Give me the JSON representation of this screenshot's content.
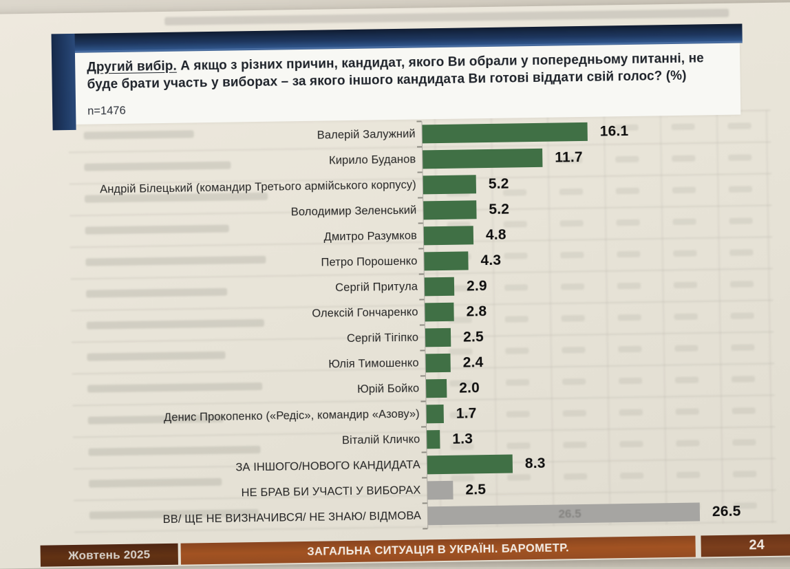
{
  "slide": {
    "title_lead": "Другий вибір.",
    "title_rest": " А якщо з різних причин, кандидат, якого Ви обрали у попередньому питанні, не буде брати участь у виборах – за якого іншого кандидата Ви готові віддати свій голос? (%)",
    "sample_size": "n=1476"
  },
  "chart_data": {
    "type": "bar",
    "orientation": "horizontal",
    "title": "Другий вибір. А якщо з різних причин, кандидат, якого Ви обрали у попередньому питанні, не буде брати участь у виборах – за якого іншого кандидата Ви готові віддати свій голос? (%)",
    "unit": "%",
    "sample": "n=1476",
    "grid": false,
    "xlim": [
      0,
      30
    ],
    "categories": [
      "Валерій Залужний",
      "Кирило Буданов",
      "Андрій Білецький (командир Третього армійського корпусу)",
      "Володимир Зеленський",
      "Дмитро Разумков",
      "Петро Порошенко",
      "Сергій Притула",
      "Олексій Гончаренко",
      "Сергій Тігіпко",
      "Юлія Тимошенко",
      "Юрій Бойко",
      "Денис Прокопенко («Редіс», командир «Азову»)",
      "Віталій Кличко",
      "ЗА ІНШОГО/НОВОГО КАНДИДАТА",
      "НЕ БРАВ БИ УЧАСТІ У ВИБОРАХ",
      "ВВ/ ЩЕ НЕ ВИЗНАЧИВСЯ/ НЕ ЗНАЮ/ ВІДМОВА"
    ],
    "values": [
      16.1,
      11.7,
      5.2,
      5.2,
      4.8,
      4.3,
      2.9,
      2.8,
      2.5,
      2.4,
      2.0,
      1.7,
      1.3,
      8.3,
      2.5,
      26.5
    ],
    "value_labels": [
      "16.1",
      "11.7",
      "5.2",
      "5.2",
      "4.8",
      "4.3",
      "2.9",
      "2.8",
      "2.5",
      "2.4",
      "2.0",
      "1.7",
      "1.3",
      "8.3",
      "2.5",
      "26.5"
    ],
    "bar_styles": [
      "green",
      "green",
      "green",
      "green",
      "green",
      "green",
      "green",
      "green",
      "green",
      "green",
      "green",
      "green",
      "green",
      "green",
      "gray",
      "gray"
    ],
    "ghost_inbar_label": "26.5"
  },
  "footer": {
    "date": "Жовтень 2025",
    "title": "ЗАГАЛЬНА СИТУАЦІЯ В УКРАЇНІ. БАРОМЕТР.",
    "page_number": "24"
  },
  "colors": {
    "bar_green": "#3d7043",
    "bar_gray": "#a7a6a3",
    "banner_navy": "#1b3660",
    "footer_orange": "#a5511d",
    "footer_brown_left": "#5c2b10",
    "footer_brown_right": "#743717",
    "page_cream": "#eae6d9"
  }
}
